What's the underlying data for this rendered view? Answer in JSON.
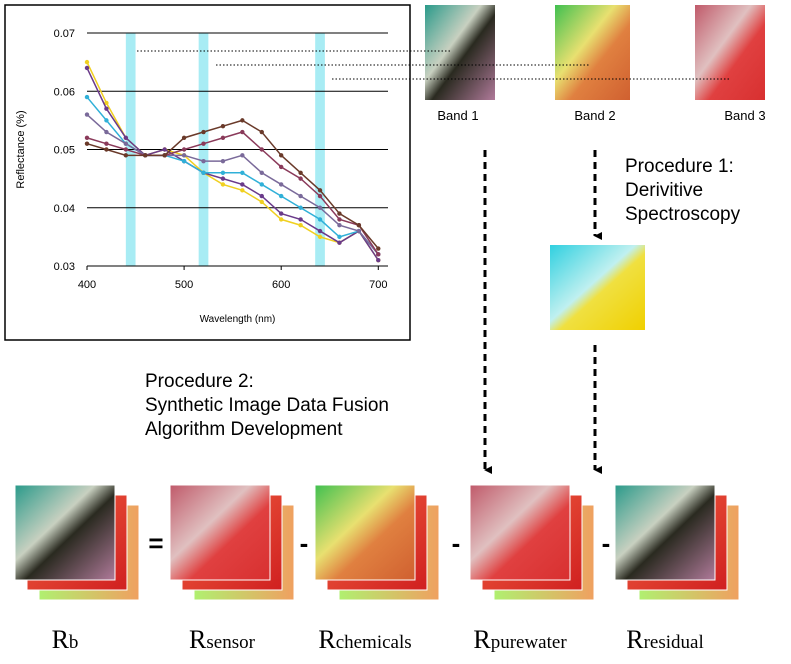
{
  "chart": {
    "type": "line",
    "x_label": "Wavelength (nm)",
    "y_label": "Reflectance (%)",
    "xlim": [
      400,
      710
    ],
    "xticks": [
      400,
      500,
      600,
      700
    ],
    "ylim": [
      0.03,
      0.07
    ],
    "yticks": [
      0.03,
      0.04,
      0.05,
      0.06,
      0.07
    ],
    "grid": true,
    "bands": [
      [
        440,
        450
      ],
      [
        515,
        525
      ],
      [
        635,
        645
      ]
    ],
    "band_color": "#a8ecf4",
    "x": [
      400,
      420,
      440,
      460,
      480,
      500,
      520,
      540,
      560,
      580,
      600,
      620,
      640,
      660,
      680,
      700
    ],
    "series": [
      {
        "color": "#f0d020",
        "values": [
          0.065,
          0.058,
          0.052,
          0.049,
          0.05,
          0.049,
          0.046,
          0.044,
          0.043,
          0.041,
          0.038,
          0.037,
          0.035,
          0.034,
          0.036,
          0.031
        ]
      },
      {
        "color": "#6a3a8a",
        "values": [
          0.064,
          0.057,
          0.052,
          0.049,
          0.05,
          0.048,
          0.046,
          0.045,
          0.044,
          0.042,
          0.039,
          0.038,
          0.036,
          0.034,
          0.036,
          0.031
        ]
      },
      {
        "color": "#30b0d8",
        "values": [
          0.059,
          0.055,
          0.051,
          0.049,
          0.049,
          0.048,
          0.046,
          0.046,
          0.046,
          0.044,
          0.042,
          0.04,
          0.038,
          0.035,
          0.036,
          0.032
        ]
      },
      {
        "color": "#7a6a9a",
        "values": [
          0.056,
          0.053,
          0.051,
          0.049,
          0.049,
          0.049,
          0.048,
          0.048,
          0.049,
          0.046,
          0.044,
          0.042,
          0.04,
          0.037,
          0.036,
          0.032
        ]
      },
      {
        "color": "#8a3a5a",
        "values": [
          0.052,
          0.051,
          0.05,
          0.049,
          0.049,
          0.05,
          0.051,
          0.052,
          0.053,
          0.05,
          0.047,
          0.045,
          0.042,
          0.038,
          0.037,
          0.032
        ]
      },
      {
        "color": "#6a3a2a",
        "values": [
          0.051,
          0.05,
          0.049,
          0.049,
          0.049,
          0.052,
          0.053,
          0.054,
          0.055,
          0.053,
          0.049,
          0.046,
          0.043,
          0.039,
          0.037,
          0.033
        ]
      }
    ]
  },
  "band_images": [
    "Band 1",
    "Band 2",
    "Band 3"
  ],
  "procedure_1": [
    "Procedure 1:",
    "Derivitive",
    "Spectroscopy"
  ],
  "procedure_2": [
    "Procedure 2:",
    "Synthetic Image Data Fusion",
    "Algorithm Development"
  ],
  "equation": {
    "terms": [
      {
        "symbol": "R",
        "subscript": "b"
      },
      {
        "symbol": "R",
        "subscript": "sensor"
      },
      {
        "symbol": "R",
        "subscript": "chemicals"
      },
      {
        "symbol": "R",
        "subscript": "purewater"
      },
      {
        "symbol": "R",
        "subscript": "residual"
      }
    ],
    "operators": [
      "=",
      "-",
      "-",
      "-"
    ]
  }
}
